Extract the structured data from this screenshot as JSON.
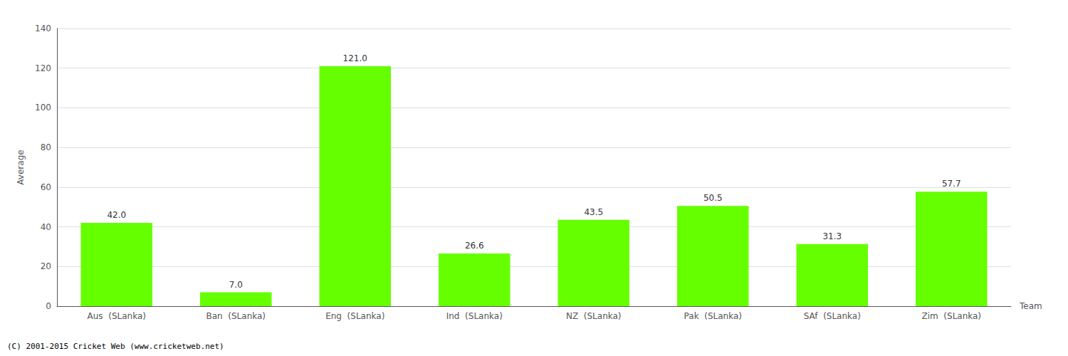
{
  "chart_data": {
    "type": "bar",
    "categories": [
      "Aus  (SLanka)",
      "Ban  (SLanka)",
      "Eng  (SLanka)",
      "Ind  (SLanka)",
      "NZ  (SLanka)",
      "Pak  (SLanka)",
      "SAf  (SLanka)",
      "Zim  (SLanka)"
    ],
    "values": [
      42.0,
      7.0,
      121.0,
      26.6,
      43.5,
      50.5,
      31.3,
      57.7
    ],
    "value_labels": [
      "42.0",
      "7.0",
      "121.0",
      "26.6",
      "43.5",
      "50.5",
      "31.3",
      "57.7"
    ],
    "data_labels": true,
    "color": "#66ff00",
    "xlabel": "Team",
    "ylabel": "Average",
    "ylim": [
      0,
      140
    ],
    "yticks": [
      0,
      20,
      40,
      60,
      80,
      100,
      120,
      140
    ],
    "grid": true,
    "annotations": [
      "(C) 2001-2015 Cricket Web (www.cricketweb.net)"
    ]
  }
}
